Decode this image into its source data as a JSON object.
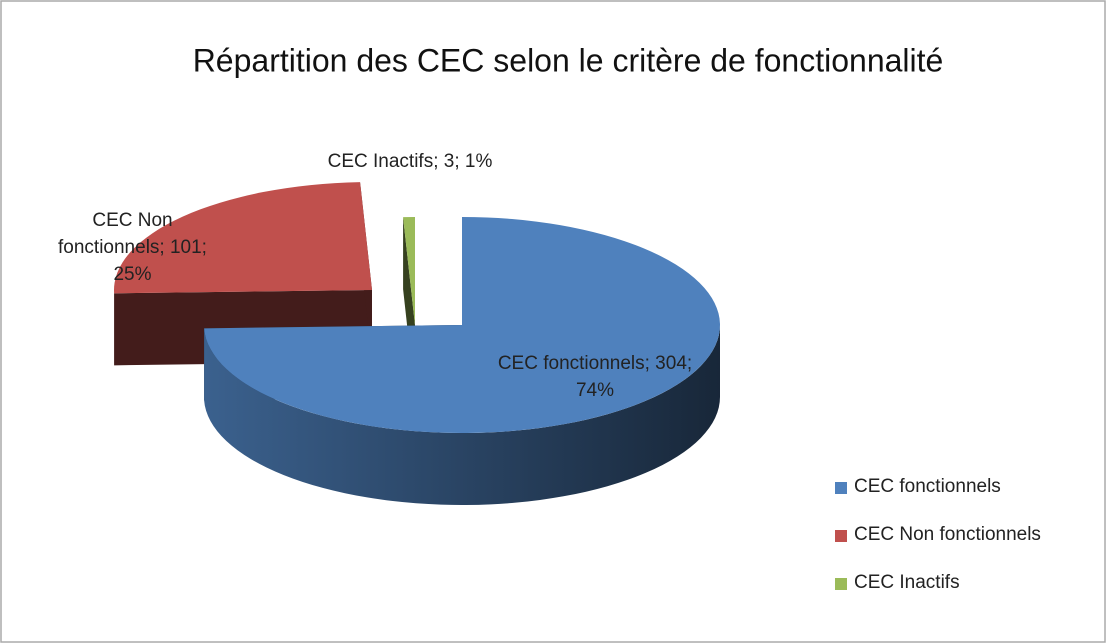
{
  "chart_data": {
    "type": "pie3d",
    "title": "Répartition des CEC selon le critère de fonctionnalité",
    "categories": [
      "CEC fonctionnels",
      "CEC Non fonctionnels",
      "CEC Inactifs"
    ],
    "values": [
      304,
      101,
      3
    ],
    "value_labels": [
      "CEC fonctionnels; 304; 74%",
      "CEC Non fonctionnels; 101; 25%",
      "CEC Inactifs; 3; 1%"
    ],
    "colors": [
      "#4f81bd",
      "#c0504d",
      "#9bbb59"
    ],
    "legend": "right"
  }
}
